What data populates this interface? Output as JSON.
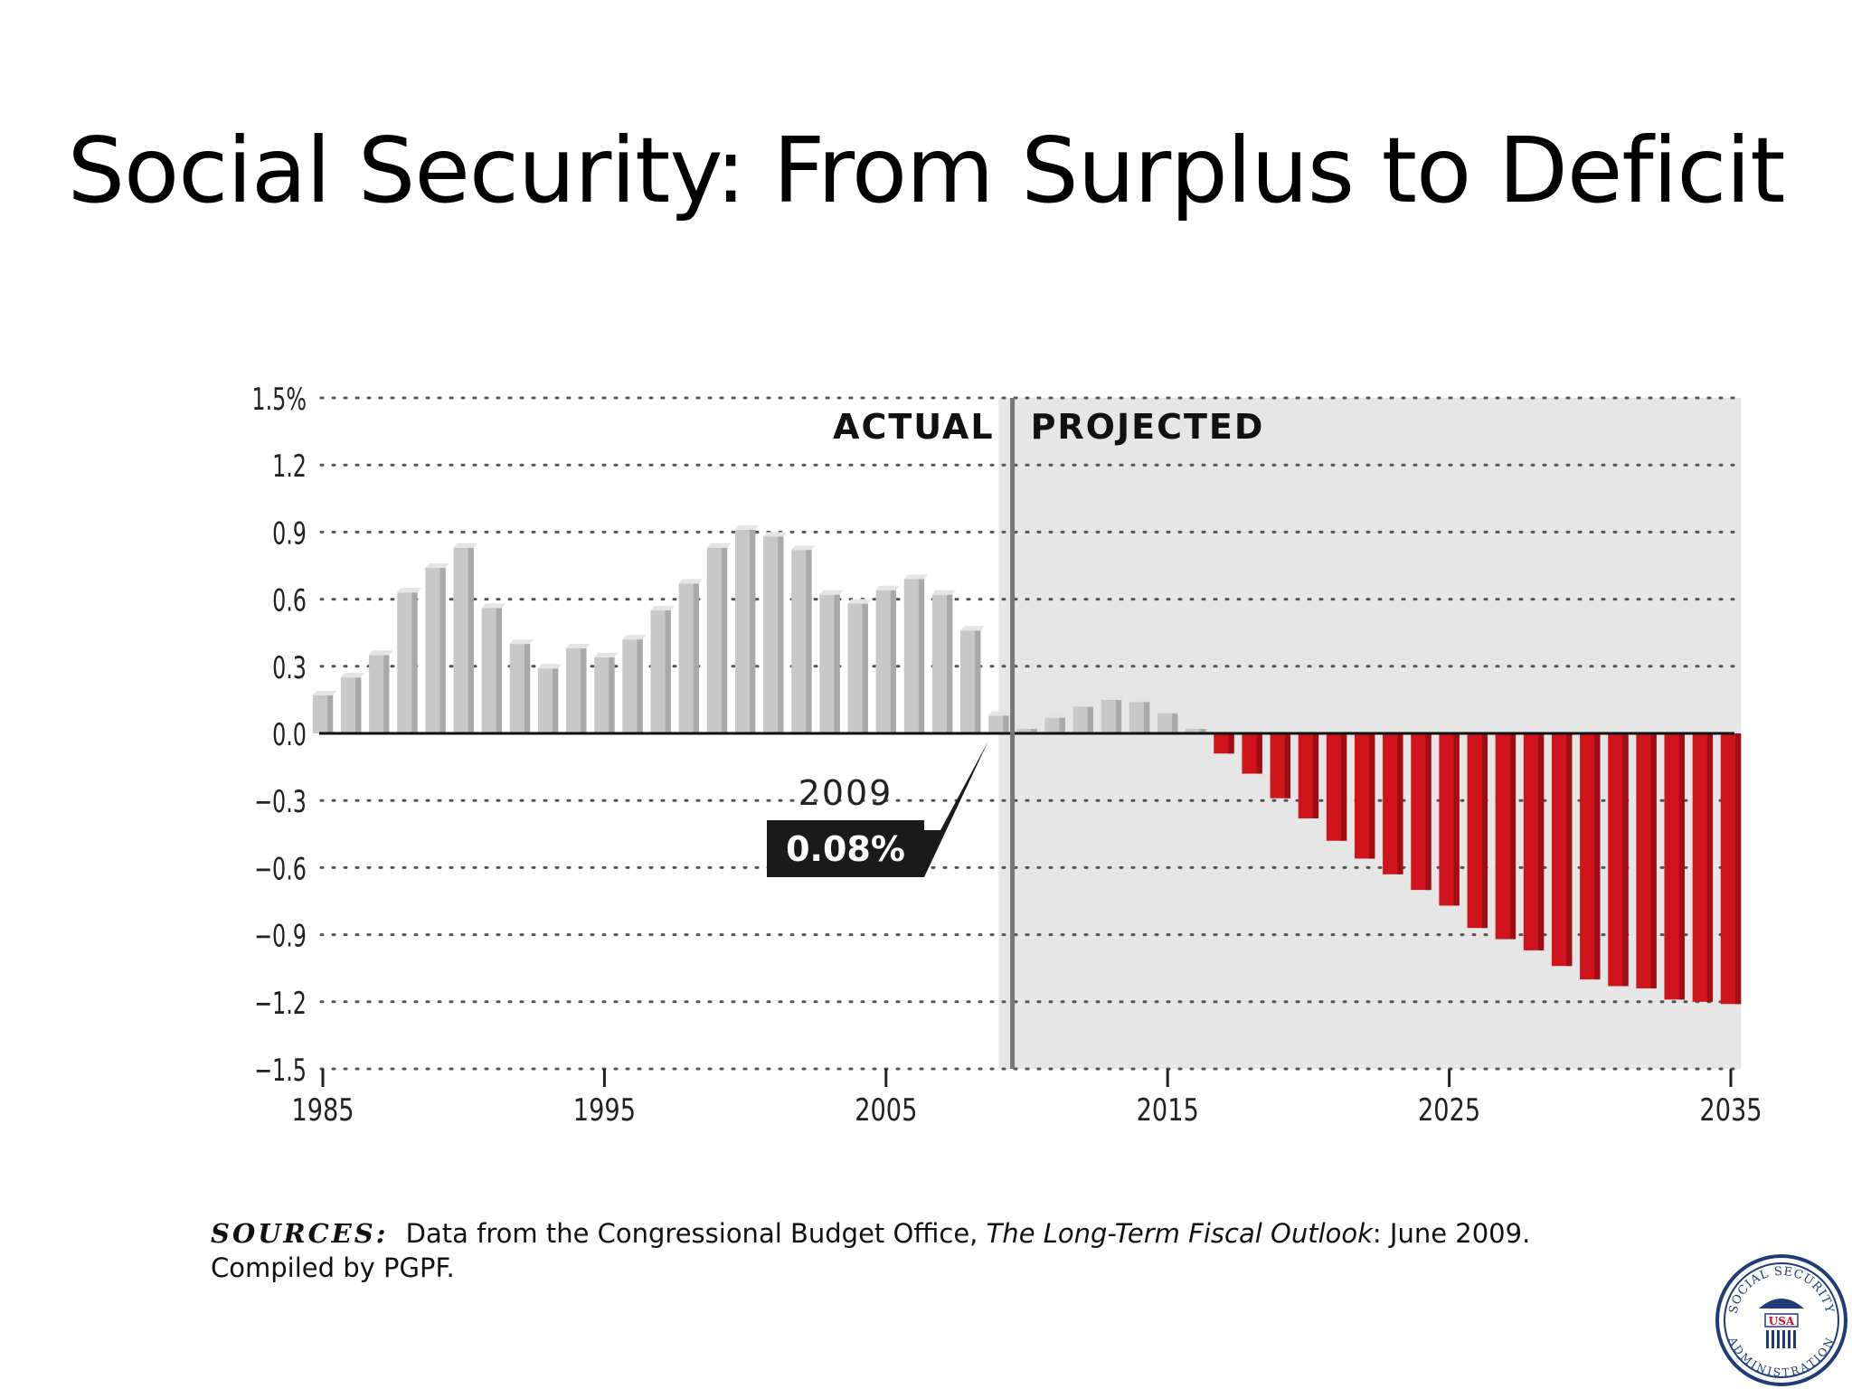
{
  "slide": {
    "title": "Social Security: From Surplus to Deficit"
  },
  "chart_data": {
    "type": "bar",
    "title": "",
    "xlabel": "",
    "ylabel": "",
    "ylim": [
      -1.5,
      1.5
    ],
    "xlim": [
      1985,
      2035
    ],
    "y_ticks": [
      1.5,
      1.2,
      0.9,
      0.6,
      0.3,
      0.0,
      -0.3,
      -0.6,
      -0.9,
      -1.2,
      -1.5
    ],
    "y_tick_labels": [
      "1.5%",
      "1.2",
      "0.9",
      "0.6",
      "0.3",
      "0.0",
      "−0.3",
      "−0.6",
      "−0.9",
      "−1.2",
      "−1.5"
    ],
    "x_ticks": [
      1985,
      1995,
      2005,
      2015,
      2025,
      2035
    ],
    "x_tick_labels": [
      "1985",
      "1995",
      "2005",
      "2015",
      "2025",
      "2035"
    ],
    "grid": "dotted horizontal",
    "regions": [
      {
        "label": "ACTUAL",
        "from": 1985,
        "to": 2009
      },
      {
        "label": "PROJECTED",
        "from": 2009,
        "to": 2035
      }
    ],
    "annotation": {
      "year": "2009",
      "value_label": "0.08%",
      "x": 2009,
      "y": 0.08
    },
    "colors": {
      "actual": "#c8c8c8",
      "projected_surplus": "#c8c8c8",
      "projected_deficit": "#d0141c",
      "projected_bg": "#e6e6e6"
    },
    "series": [
      {
        "x": [
          1985,
          1986,
          1987,
          1988,
          1989,
          1990,
          1991,
          1992,
          1993,
          1994,
          1995,
          1996,
          1997,
          1998,
          1999,
          2000,
          2001,
          2002,
          2003,
          2004,
          2005,
          2006,
          2007,
          2008,
          2009,
          2010,
          2011,
          2012,
          2013,
          2014,
          2015,
          2016,
          2017,
          2018,
          2019,
          2020,
          2021,
          2022,
          2023,
          2024,
          2025,
          2026,
          2027,
          2028,
          2029,
          2030,
          2031,
          2032,
          2033,
          2034,
          2035
        ],
        "values": [
          0.17,
          0.25,
          0.35,
          0.63,
          0.74,
          0.83,
          0.56,
          0.4,
          0.29,
          0.38,
          0.34,
          0.42,
          0.55,
          0.67,
          0.83,
          0.91,
          0.88,
          0.82,
          0.62,
          0.58,
          0.64,
          0.69,
          0.62,
          0.46,
          0.08,
          0.02,
          0.07,
          0.12,
          0.15,
          0.14,
          0.09,
          0.02,
          -0.09,
          -0.18,
          -0.29,
          -0.38,
          -0.48,
          -0.56,
          -0.63,
          -0.7,
          -0.77,
          -0.87,
          -0.92,
          -0.97,
          -1.04,
          -1.1,
          -1.13,
          -1.14,
          -1.19,
          -1.2,
          -1.21
        ]
      }
    ]
  },
  "sources": {
    "label": "SOURCES:",
    "text_before": "Data from the Congressional Budget Office, ",
    "publication": "The Long-Term Fiscal Outlook",
    "text_after": ": June 2009.",
    "line2": "Compiled by PGPF."
  },
  "seal": {
    "text_top": "SOCIAL SECURITY",
    "text_bottom": "ADMINISTRATION",
    "text_center": "USA"
  }
}
